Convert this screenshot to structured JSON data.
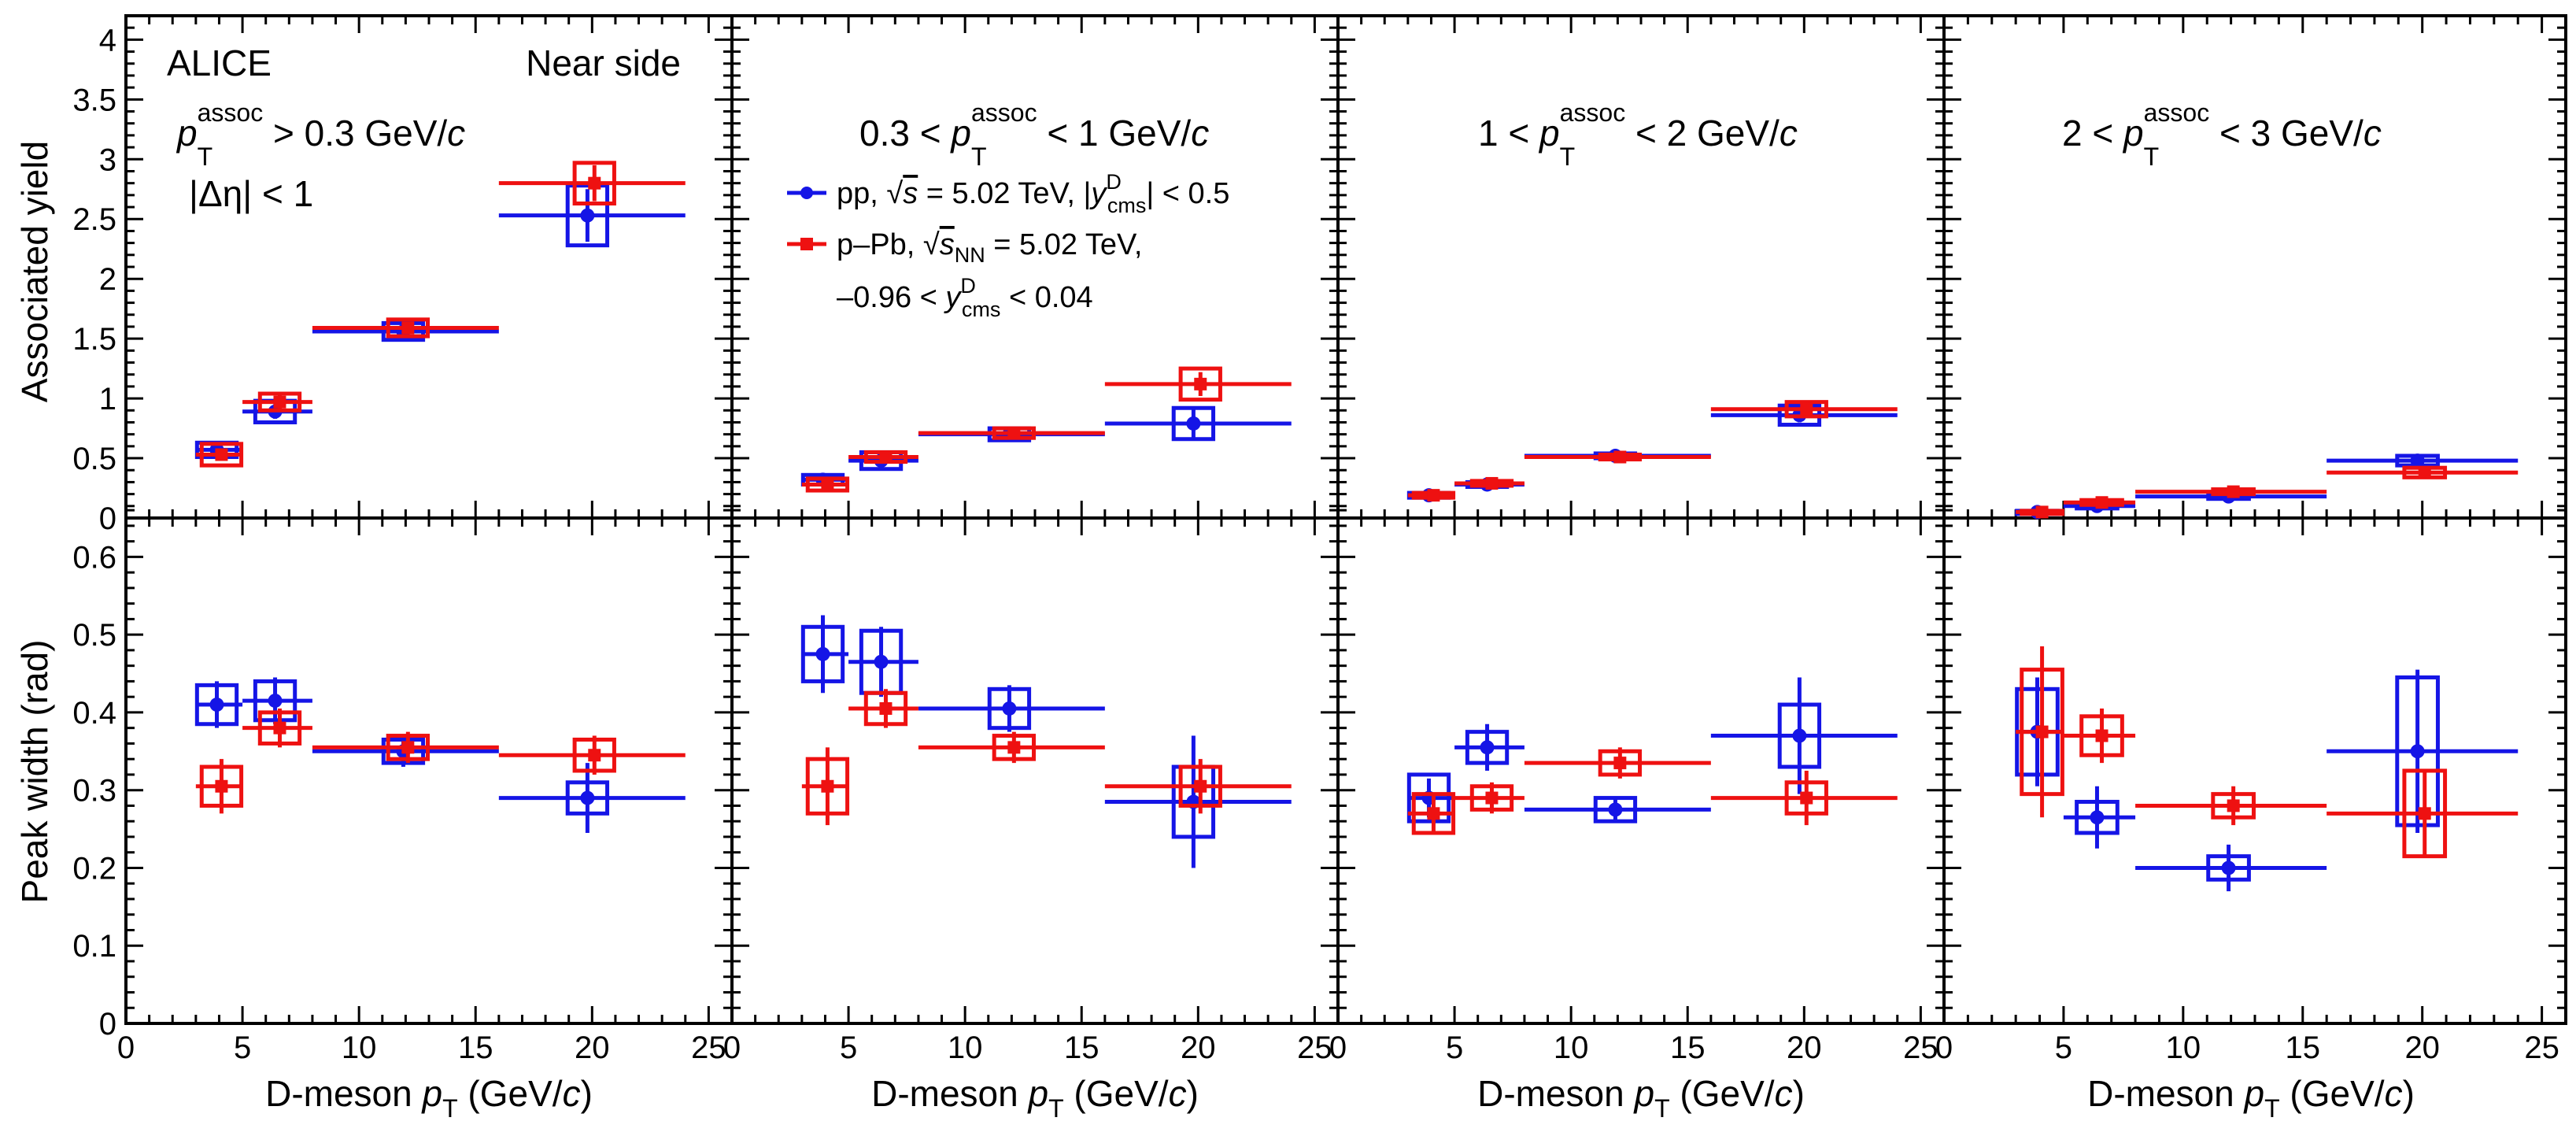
{
  "figure": {
    "experiment": "ALICE",
    "region": "Near side",
    "eta_cut": "|Δη| < 1",
    "xlabel_main": "D-meson ",
    "xlabel_var": "p",
    "xlabel_sub": "T",
    "xlabel_unit_a": " (GeV/",
    "xlabel_unit_c": "c",
    "xlabel_unit_b": ")",
    "ylabel_top": "Associated yield",
    "ylabel_bottom": "Peak width (rad)",
    "colors": {
      "pp": "#1515e6",
      "ppb": "#ee1111",
      "axis": "#000000"
    }
  },
  "panels": [
    {
      "label_pre": "",
      "label_post": " > 0.3 GeV/",
      "label_unit": "c"
    },
    {
      "label_pre": "0.3 < ",
      "label_post": " < 1 GeV/",
      "label_unit": "c"
    },
    {
      "label_pre": "1 < ",
      "label_post": " < 2 GeV/",
      "label_unit": "c"
    },
    {
      "label_pre": "2 < ",
      "label_post": " < 3 GeV/",
      "label_unit": "c"
    }
  ],
  "legend": {
    "pp_system": "pp, ",
    "pp_energy": " = 5.02 TeV, |",
    "pp_rap": "| < 0.5",
    "ppb_system": "p–Pb, ",
    "ppb_energy": " = 5.02 TeV,",
    "ppb_rap_pre": "–0.96 < ",
    "ppb_rap_post": " < 0.04"
  },
  "chart_data": {
    "type": "scatter",
    "x_axis": {
      "label": "D-meson pT (GeV/c)",
      "range": [
        0,
        26
      ],
      "ticks": [
        0,
        5,
        10,
        15,
        20,
        25
      ]
    },
    "y_axis_top": {
      "label": "Associated yield",
      "range": [
        0,
        4.2
      ],
      "ticks": [
        0,
        0.5,
        1,
        1.5,
        2,
        2.5,
        3,
        3.5,
        4
      ],
      "tick_labels": [
        "0",
        "0.5",
        "1",
        "1.5",
        "2",
        "2.5",
        "3",
        "3.5",
        "4"
      ]
    },
    "y_axis_bottom": {
      "label": "Peak width (rad)",
      "range": [
        0,
        0.65
      ],
      "ticks": [
        0,
        0.1,
        0.2,
        0.3,
        0.4,
        0.5,
        0.6
      ],
      "tick_labels": [
        "0",
        "0.1",
        "0.2",
        "0.3",
        "0.4",
        "0.5",
        "0.6"
      ]
    },
    "pt_bins": [
      [
        3,
        5
      ],
      [
        5,
        8
      ],
      [
        8,
        16
      ],
      [
        16,
        24
      ]
    ],
    "series": [
      {
        "name": "pp, √s = 5.02 TeV, |y_cms^D| < 0.5",
        "key": "pp"
      },
      {
        "name": "p–Pb, √s_NN = 5.02 TeV, –0.96 < y_cms^D < 0.04",
        "key": "ppb"
      }
    ],
    "yield": {
      "pp": [
        {
          "x": [
            3.9,
            6.4,
            11.9,
            19.8
          ],
          "y": [
            0.57,
            0.89,
            1.56,
            2.53
          ],
          "stat": [
            0.05,
            0.06,
            0.05,
            0.22
          ],
          "syst": [
            0.06,
            0.09,
            0.07,
            0.25
          ]
        },
        {
          "x": [
            3.9,
            6.4,
            11.9,
            19.8
          ],
          "y": [
            0.32,
            0.48,
            0.7,
            0.79
          ],
          "stat": [
            0.03,
            0.04,
            0.03,
            0.12
          ],
          "syst": [
            0.04,
            0.07,
            0.05,
            0.13
          ]
        },
        {
          "x": [
            3.9,
            6.4,
            11.9,
            19.8
          ],
          "y": [
            0.19,
            0.28,
            0.52,
            0.86
          ],
          "stat": [
            0.02,
            0.02,
            0.02,
            0.06
          ],
          "syst": [
            0.02,
            0.02,
            0.02,
            0.08
          ]
        },
        {
          "x": [
            3.9,
            6.4,
            11.9,
            19.8
          ],
          "y": [
            0.05,
            0.1,
            0.18,
            0.48
          ],
          "stat": [
            0.01,
            0.01,
            0.02,
            0.05
          ],
          "syst": [
            0.01,
            0.02,
            0.02,
            0.04
          ]
        }
      ],
      "ppb": [
        {
          "x": [
            4.1,
            6.6,
            12.1,
            20.1
          ],
          "y": [
            0.53,
            0.97,
            1.59,
            2.8
          ],
          "stat": [
            0.05,
            0.06,
            0.05,
            0.15
          ],
          "syst": [
            0.09,
            0.07,
            0.07,
            0.17
          ]
        },
        {
          "x": [
            4.1,
            6.6,
            12.1,
            20.1
          ],
          "y": [
            0.28,
            0.51,
            0.71,
            1.12
          ],
          "stat": [
            0.03,
            0.04,
            0.03,
            0.1
          ],
          "syst": [
            0.05,
            0.04,
            0.04,
            0.13
          ]
        },
        {
          "x": [
            4.1,
            6.6,
            12.1,
            20.1
          ],
          "y": [
            0.19,
            0.29,
            0.51,
            0.91
          ],
          "stat": [
            0.02,
            0.02,
            0.02,
            0.05
          ],
          "syst": [
            0.02,
            0.02,
            0.02,
            0.06
          ]
        },
        {
          "x": [
            4.1,
            6.6,
            12.1,
            20.1
          ],
          "y": [
            0.05,
            0.13,
            0.22,
            0.38
          ],
          "stat": [
            0.01,
            0.01,
            0.02,
            0.04
          ],
          "syst": [
            0.01,
            0.02,
            0.02,
            0.04
          ]
        }
      ]
    },
    "width": {
      "pp": [
        {
          "x": [
            3.9,
            6.4,
            11.9,
            19.8
          ],
          "y": [
            0.41,
            0.415,
            0.35,
            0.29
          ],
          "stat": [
            0.03,
            0.03,
            0.02,
            0.045
          ],
          "syst": [
            0.025,
            0.025,
            0.015,
            0.02
          ]
        },
        {
          "x": [
            3.9,
            6.4,
            11.9,
            19.8
          ],
          "y": [
            0.475,
            0.465,
            0.405,
            0.285
          ],
          "stat": [
            0.05,
            0.045,
            0.03,
            0.085
          ],
          "syst": [
            0.035,
            0.04,
            0.025,
            0.045
          ]
        },
        {
          "x": [
            3.9,
            6.4,
            11.9,
            19.8
          ],
          "y": [
            0.29,
            0.355,
            0.275,
            0.37
          ],
          "stat": [
            0.025,
            0.03,
            0.015,
            0.075
          ],
          "syst": [
            0.03,
            0.02,
            0.015,
            0.04
          ]
        },
        {
          "x": [
            3.9,
            6.4,
            11.9,
            19.8
          ],
          "y": [
            0.375,
            0.265,
            0.2,
            0.35
          ],
          "stat": [
            0.07,
            0.04,
            0.03,
            0.105
          ],
          "syst": [
            0.055,
            0.02,
            0.015,
            0.095
          ]
        }
      ],
      "ppb": [
        {
          "x": [
            4.1,
            6.6,
            12.1,
            20.1
          ],
          "y": [
            0.305,
            0.38,
            0.355,
            0.345
          ],
          "stat": [
            0.035,
            0.025,
            0.02,
            0.025
          ],
          "syst": [
            0.025,
            0.02,
            0.015,
            0.02
          ]
        },
        {
          "x": [
            4.1,
            6.6,
            12.1,
            20.1
          ],
          "y": [
            0.305,
            0.405,
            0.355,
            0.305
          ],
          "stat": [
            0.05,
            0.025,
            0.02,
            0.035
          ],
          "syst": [
            0.035,
            0.02,
            0.015,
            0.025
          ]
        },
        {
          "x": [
            4.1,
            6.6,
            12.1,
            20.1
          ],
          "y": [
            0.27,
            0.29,
            0.335,
            0.29
          ],
          "stat": [
            0.025,
            0.02,
            0.02,
            0.035
          ],
          "syst": [
            0.025,
            0.015,
            0.015,
            0.02
          ]
        },
        {
          "x": [
            4.1,
            6.6,
            12.1,
            20.1
          ],
          "y": [
            0.375,
            0.37,
            0.28,
            0.27
          ],
          "stat": [
            0.11,
            0.035,
            0.025,
            0.055
          ],
          "syst": [
            0.08,
            0.025,
            0.015,
            0.055
          ]
        }
      ]
    }
  }
}
